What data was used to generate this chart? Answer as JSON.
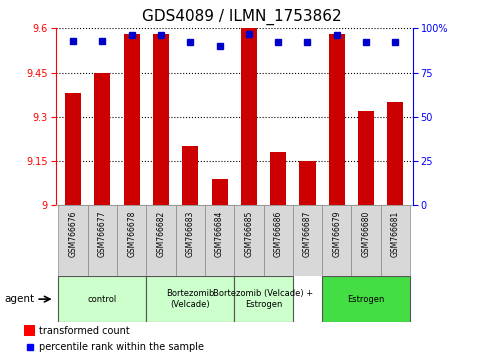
{
  "title": "GDS4089 / ILMN_1753862",
  "samples": [
    "GSM766676",
    "GSM766677",
    "GSM766678",
    "GSM766682",
    "GSM766683",
    "GSM766684",
    "GSM766685",
    "GSM766686",
    "GSM766687",
    "GSM766679",
    "GSM766680",
    "GSM766681"
  ],
  "bar_values": [
    9.38,
    9.45,
    9.58,
    9.58,
    9.2,
    9.09,
    9.6,
    9.18,
    9.15,
    9.58,
    9.32,
    9.35
  ],
  "percentile_values": [
    93,
    93,
    96,
    96,
    92,
    90,
    97,
    92,
    92,
    96,
    92,
    92
  ],
  "ylim_left": [
    9.0,
    9.6
  ],
  "ylim_right": [
    0,
    100
  ],
  "bar_color": "#cc0000",
  "dot_color": "#0000cc",
  "background_color": "#ffffff",
  "plot_bg_color": "#ffffff",
  "groups_info": [
    {
      "label": "control",
      "indices": [
        0,
        1,
        2
      ],
      "color": "#ccffcc"
    },
    {
      "label": "Bortezomib\n(Velcade)",
      "indices": [
        3,
        4,
        5
      ],
      "color": "#ccffcc"
    },
    {
      "label": "Bortezomib (Velcade) +\nEstrogen",
      "indices": [
        6,
        7
      ],
      "color": "#ccffcc"
    },
    {
      "label": "Estrogen",
      "indices": [
        9,
        10,
        11
      ],
      "color": "#44dd44"
    }
  ],
  "agent_label": "agent",
  "legend_bar_label": "transformed count",
  "legend_dot_label": "percentile rank within the sample",
  "left_yticks": [
    9.0,
    9.15,
    9.3,
    9.45,
    9.6
  ],
  "right_yticks": [
    0,
    25,
    50,
    75,
    100
  ],
  "title_fontsize": 11,
  "tick_fontsize": 7,
  "label_fontsize": 8
}
